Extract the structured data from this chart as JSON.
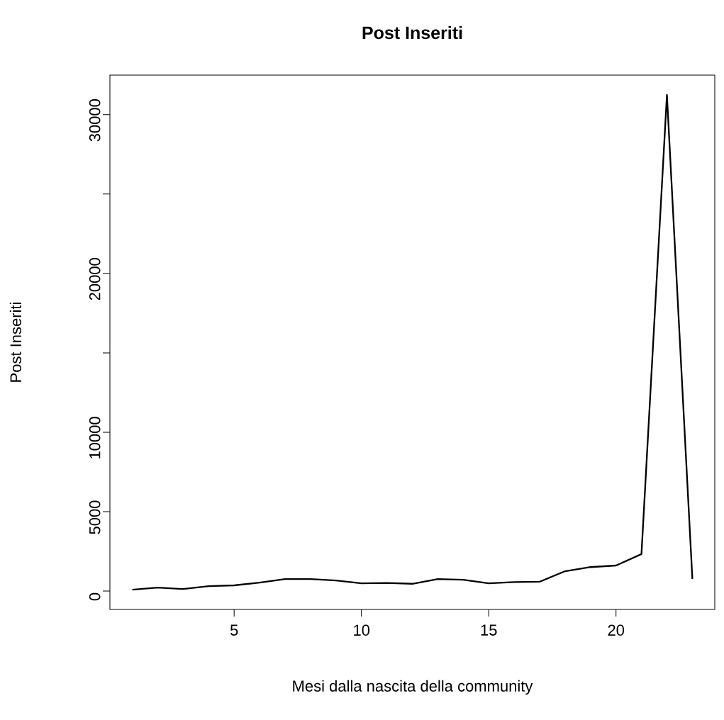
{
  "chart_data": {
    "type": "line",
    "title": "Post Inseriti",
    "xlabel": "Mesi dalla nascita della community",
    "ylabel": "Post Inseriti",
    "x": [
      1,
      2,
      3,
      4,
      5,
      6,
      7,
      8,
      9,
      10,
      11,
      12,
      13,
      14,
      15,
      16,
      17,
      18,
      19,
      20,
      21,
      22,
      23
    ],
    "series": [
      {
        "color": "#000000",
        "values": [
          90,
          220,
          130,
          310,
          360,
          530,
          760,
          760,
          670,
          490,
          510,
          460,
          760,
          710,
          490,
          570,
          590,
          1250,
          1510,
          1610,
          2330,
          31240,
          760
        ]
      }
    ],
    "xlim": [
      0.12,
      23.88
    ],
    "ylim": [
      -1156,
      32486
    ],
    "xticks": [
      5,
      10,
      15,
      20
    ],
    "yticks": [
      0,
      5000,
      10000,
      {
        "value": 15000,
        "label": null
      },
      20000,
      {
        "value": 25000,
        "label": null
      },
      30000
    ],
    "marker": "none",
    "line_style": "solid"
  }
}
